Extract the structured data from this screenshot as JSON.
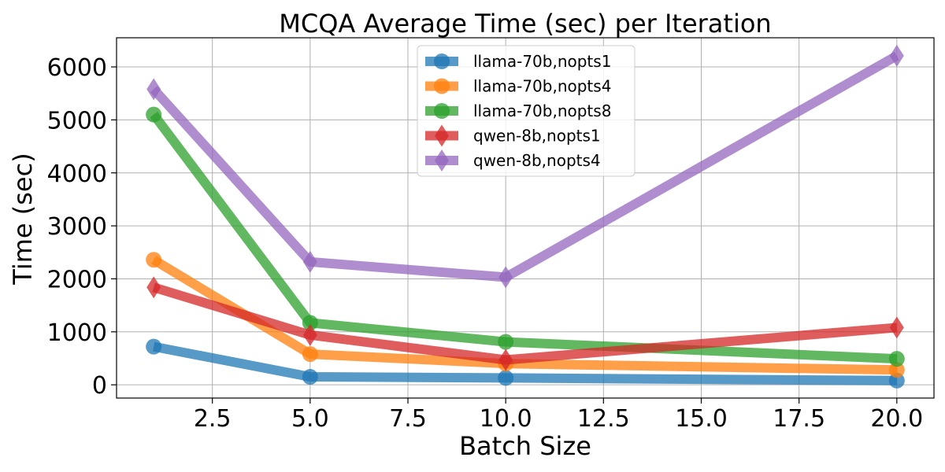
{
  "chart_data": {
    "type": "line",
    "title": "MCQA Average Time (sec) per Iteration",
    "xlabel": "Batch Size",
    "ylabel": "Time (sec)",
    "xlim": [
      0.05,
      20.95
    ],
    "ylim": [
      -250,
      6550
    ],
    "x": [
      1,
      5,
      10,
      20
    ],
    "xticks": [
      2.5,
      5.0,
      7.5,
      10.0,
      12.5,
      15.0,
      17.5,
      20.0
    ],
    "xtick_labels": [
      "2.5",
      "5.0",
      "7.5",
      "10.0",
      "12.5",
      "15.0",
      "17.5",
      "20.0"
    ],
    "yticks": [
      0,
      1000,
      2000,
      3000,
      4000,
      5000,
      6000
    ],
    "ytick_labels": [
      "0",
      "1000",
      "2000",
      "3000",
      "4000",
      "5000",
      "6000"
    ],
    "grid": true,
    "legend_position": "top-center",
    "series": [
      {
        "name": "llama-70b,nopts1",
        "color": "#1f77b4",
        "marker": "circle",
        "values": [
          720,
          150,
          130,
          80
        ]
      },
      {
        "name": "llama-70b,nopts4",
        "color": "#ff7f0e",
        "marker": "circle",
        "values": [
          2360,
          580,
          400,
          280
        ]
      },
      {
        "name": "llama-70b,nopts8",
        "color": "#2ca02c",
        "marker": "circle",
        "values": [
          5100,
          1170,
          810,
          490
        ]
      },
      {
        "name": "qwen-8b,nopts1",
        "color": "#d62728",
        "marker": "diamond",
        "values": [
          1840,
          940,
          470,
          1080
        ]
      },
      {
        "name": "qwen-8b,nopts4",
        "color": "#9467bd",
        "marker": "diamond",
        "values": [
          5580,
          2320,
          2030,
          6210
        ]
      }
    ]
  }
}
